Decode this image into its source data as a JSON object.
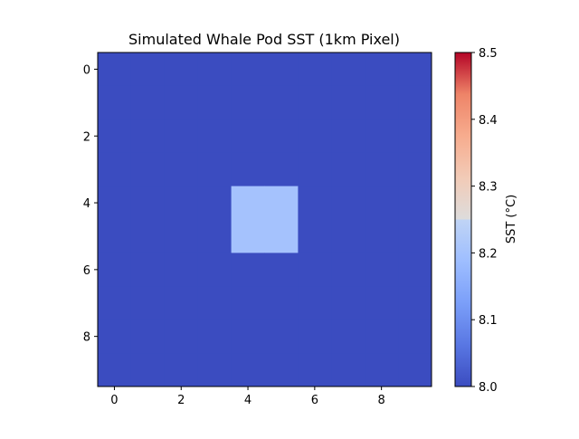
{
  "chart_data": {
    "type": "heatmap",
    "title": "Simulated Whale Pod SST (1km Pixel)",
    "xlabel": "",
    "ylabel": "",
    "grid": false,
    "colormap": "coolwarm",
    "x_ticks": [
      0,
      2,
      4,
      6,
      8
    ],
    "y_ticks": [
      0,
      2,
      4,
      6,
      8
    ],
    "xlim": [
      -0.5,
      9.5
    ],
    "ylim": [
      9.5,
      -0.5
    ],
    "values": [
      [
        8.0,
        8.0,
        8.0,
        8.0,
        8.0,
        8.0,
        8.0,
        8.0,
        8.0,
        8.0
      ],
      [
        8.0,
        8.0,
        8.0,
        8.0,
        8.0,
        8.0,
        8.0,
        8.0,
        8.0,
        8.0
      ],
      [
        8.0,
        8.0,
        8.0,
        8.0,
        8.0,
        8.0,
        8.0,
        8.0,
        8.0,
        8.0
      ],
      [
        8.0,
        8.0,
        8.0,
        8.0,
        8.0,
        8.0,
        8.0,
        8.0,
        8.0,
        8.0
      ],
      [
        8.0,
        8.0,
        8.0,
        8.0,
        8.2,
        8.2,
        8.0,
        8.0,
        8.0,
        8.0
      ],
      [
        8.0,
        8.0,
        8.0,
        8.0,
        8.2,
        8.2,
        8.0,
        8.0,
        8.0,
        8.0
      ],
      [
        8.0,
        8.0,
        8.0,
        8.0,
        8.0,
        8.0,
        8.0,
        8.0,
        8.0,
        8.0
      ],
      [
        8.0,
        8.0,
        8.0,
        8.0,
        8.0,
        8.0,
        8.0,
        8.0,
        8.0,
        8.0
      ],
      [
        8.0,
        8.0,
        8.0,
        8.0,
        8.0,
        8.0,
        8.0,
        8.0,
        8.0,
        8.0
      ],
      [
        8.0,
        8.0,
        8.0,
        8.0,
        8.0,
        8.0,
        8.0,
        8.0,
        8.0,
        8.0
      ]
    ],
    "colorbar": {
      "label": "SST (°C)",
      "range": [
        8.0,
        8.5
      ],
      "ticks": [
        "8.0",
        "8.1",
        "8.2",
        "8.3",
        "8.4",
        "8.5"
      ]
    }
  }
}
